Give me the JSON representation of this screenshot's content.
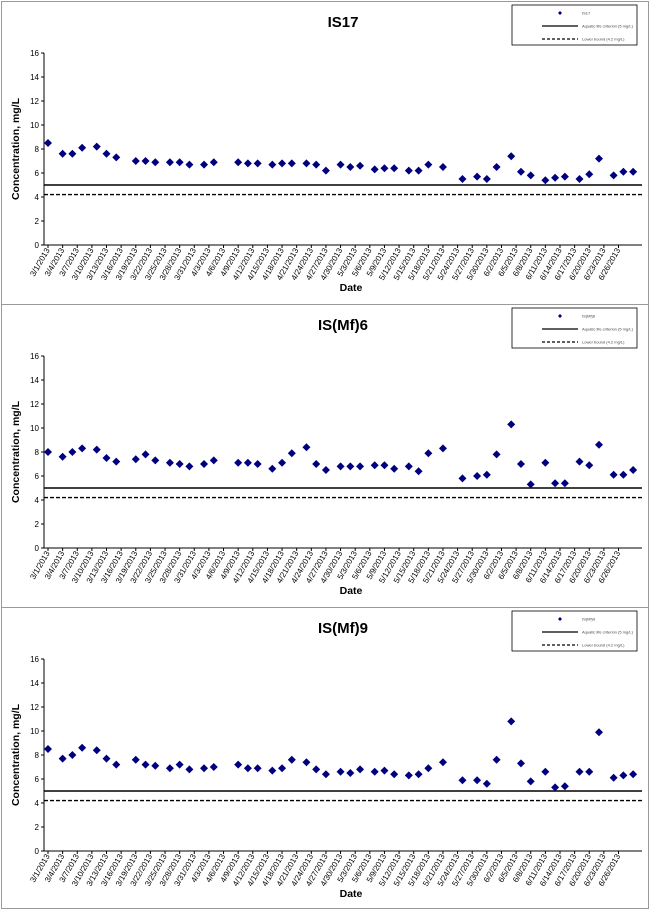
{
  "page": {
    "background": "#ffffff"
  },
  "style": {
    "marker_color": "#00007f",
    "line_color": "#000000"
  },
  "chart_data": [
    {
      "type": "scatter",
      "title": "IS17",
      "xlabel": "Date",
      "ylabel": "Concentration, mg/L",
      "ylim": [
        0,
        16
      ],
      "yticks": [
        0,
        2,
        4,
        6,
        8,
        10,
        12,
        14,
        16
      ],
      "xlim": [
        "2013-03-01",
        "2013-06-29"
      ],
      "xtick_labels": [
        "3/1/2013",
        "3/4/2013",
        "3/7/2013",
        "3/10/2013",
        "3/13/2013",
        "3/16/2013",
        "3/19/2013",
        "3/22/2013",
        "3/25/2013",
        "3/28/2013",
        "3/31/2013",
        "4/3/2013",
        "4/6/2013",
        "4/9/2013",
        "4/12/2013",
        "4/15/2013",
        "4/18/2013",
        "4/21/2013",
        "4/24/2013",
        "4/27/2013",
        "4/30/2013",
        "5/3/2013",
        "5/6/2013",
        "5/9/2013",
        "5/12/2013",
        "5/15/2013",
        "5/18/2013",
        "5/21/2013",
        "5/24/2013",
        "5/27/2013",
        "5/30/2013",
        "6/2/2013",
        "6/5/2013",
        "6/8/2013",
        "6/11/2013",
        "6/14/2013",
        "6/17/2013",
        "6/20/2013",
        "6/23/2013",
        "6/26/2013"
      ],
      "grid": false,
      "legend_position": "top-right",
      "legend_labels": [
        "IS17",
        "Aquatic life criterion (5 mg/L)",
        "Lower bound (4.2 mg/L)"
      ],
      "series": [
        {
          "name": "IS17",
          "style": "marker",
          "x": [
            "2013-03-01",
            "2013-03-04",
            "2013-03-06",
            "2013-03-08",
            "2013-03-11",
            "2013-03-13",
            "2013-03-15",
            "2013-03-19",
            "2013-03-21",
            "2013-03-23",
            "2013-03-26",
            "2013-03-28",
            "2013-03-30",
            "2013-04-02",
            "2013-04-04",
            "2013-04-09",
            "2013-04-11",
            "2013-04-13",
            "2013-04-16",
            "2013-04-18",
            "2013-04-20",
            "2013-04-23",
            "2013-04-25",
            "2013-04-27",
            "2013-04-30",
            "2013-05-02",
            "2013-05-04",
            "2013-05-07",
            "2013-05-09",
            "2013-05-11",
            "2013-05-14",
            "2013-05-16",
            "2013-05-18",
            "2013-05-21",
            "2013-05-25",
            "2013-05-28",
            "2013-05-30",
            "2013-06-01",
            "2013-06-04",
            "2013-06-06",
            "2013-06-08",
            "2013-06-11",
            "2013-06-13",
            "2013-06-15",
            "2013-06-18",
            "2013-06-20",
            "2013-06-22",
            "2013-06-25",
            "2013-06-27",
            "2013-06-29"
          ],
          "y": [
            8.5,
            7.6,
            7.6,
            8.1,
            8.2,
            7.6,
            7.3,
            7.0,
            7.0,
            6.9,
            6.9,
            6.9,
            6.7,
            6.7,
            6.9,
            6.9,
            6.8,
            6.8,
            6.7,
            6.8,
            6.8,
            6.8,
            6.7,
            6.2,
            6.7,
            6.5,
            6.6,
            6.3,
            6.4,
            6.4,
            6.2,
            6.2,
            6.7,
            6.5,
            5.5,
            5.7,
            5.5,
            6.5,
            7.4,
            6.1,
            5.8,
            5.4,
            5.6,
            5.7,
            5.5,
            5.9,
            7.2,
            5.8,
            6.1,
            6.1
          ]
        },
        {
          "name": "Aquatic life criterion (5 mg/L)",
          "style": "solid",
          "y": 5.0
        },
        {
          "name": "Lower bound (4.2 mg/L)",
          "style": "dashed",
          "y": 4.2
        }
      ]
    },
    {
      "type": "scatter",
      "title": "IS(Mf)6",
      "xlabel": "Date",
      "ylabel": "Concentration, mg/L",
      "ylim": [
        0,
        16
      ],
      "yticks": [
        0,
        2,
        4,
        6,
        8,
        10,
        12,
        14,
        16
      ],
      "xlim": [
        "2013-03-01",
        "2013-06-29"
      ],
      "xtick_labels": [
        "3/1/2013",
        "3/4/2013",
        "3/7/2013",
        "3/10/2013",
        "3/13/2013",
        "3/16/2013",
        "3/19/2013",
        "3/22/2013",
        "3/25/2013",
        "3/28/2013",
        "3/31/2013",
        "4/3/2013",
        "4/6/2013",
        "4/9/2013",
        "4/12/2013",
        "4/15/2013",
        "4/18/2013",
        "4/21/2013",
        "4/24/2013",
        "4/27/2013",
        "4/30/2013",
        "5/3/2013",
        "5/6/2013",
        "5/9/2013",
        "5/12/2013",
        "5/15/2013",
        "5/18/2013",
        "5/21/2013",
        "5/24/2013",
        "5/27/2013",
        "5/30/2013",
        "6/2/2013",
        "6/5/2013",
        "6/8/2013",
        "6/11/2013",
        "6/14/2013",
        "6/17/2013",
        "6/20/2013",
        "6/23/2013",
        "6/26/2013"
      ],
      "grid": false,
      "legend_position": "top-right",
      "legend_labels": [
        "IS(Mf)6",
        "Aquatic life criterion (5 mg/L)",
        "Lower bound (4.2 mg/L)"
      ],
      "series": [
        {
          "name": "IS(Mf)6",
          "style": "marker",
          "x": [
            "2013-03-01",
            "2013-03-04",
            "2013-03-06",
            "2013-03-08",
            "2013-03-11",
            "2013-03-13",
            "2013-03-15",
            "2013-03-19",
            "2013-03-21",
            "2013-03-23",
            "2013-03-26",
            "2013-03-28",
            "2013-03-30",
            "2013-04-02",
            "2013-04-04",
            "2013-04-09",
            "2013-04-11",
            "2013-04-13",
            "2013-04-16",
            "2013-04-18",
            "2013-04-20",
            "2013-04-23",
            "2013-04-25",
            "2013-04-27",
            "2013-04-30",
            "2013-05-02",
            "2013-05-04",
            "2013-05-07",
            "2013-05-09",
            "2013-05-11",
            "2013-05-14",
            "2013-05-16",
            "2013-05-18",
            "2013-05-21",
            "2013-05-25",
            "2013-05-28",
            "2013-05-30",
            "2013-06-01",
            "2013-06-04",
            "2013-06-06",
            "2013-06-08",
            "2013-06-11",
            "2013-06-13",
            "2013-06-15",
            "2013-06-18",
            "2013-06-20",
            "2013-06-22",
            "2013-06-25",
            "2013-06-27",
            "2013-06-29"
          ],
          "y": [
            8.0,
            7.6,
            8.0,
            8.3,
            8.2,
            7.5,
            7.2,
            7.4,
            7.8,
            7.3,
            7.1,
            7.0,
            6.8,
            7.0,
            7.3,
            7.1,
            7.1,
            7.0,
            6.6,
            7.1,
            7.9,
            8.4,
            7.0,
            6.5,
            6.8,
            6.8,
            6.8,
            6.9,
            6.9,
            6.6,
            6.8,
            6.4,
            7.9,
            8.3,
            5.8,
            6.0,
            6.1,
            7.8,
            10.3,
            7.0,
            5.3,
            7.1,
            5.4,
            5.4,
            7.2,
            6.9,
            8.6,
            6.1,
            6.1,
            6.5
          ]
        },
        {
          "name": "Aquatic life criterion (5 mg/L)",
          "style": "solid",
          "y": 5.0
        },
        {
          "name": "Lower bound (4.2 mg/L)",
          "style": "dashed",
          "y": 4.2
        }
      ]
    },
    {
      "type": "scatter",
      "title": "IS(Mf)9",
      "xlabel": "Date",
      "ylabel": "Concentration, mg/L",
      "ylim": [
        0,
        16
      ],
      "yticks": [
        0,
        2,
        4,
        6,
        8,
        10,
        12,
        14,
        16
      ],
      "xlim": [
        "2013-03-01",
        "2013-06-29"
      ],
      "xtick_labels": [
        "3/1/2013",
        "3/4/2013",
        "3/7/2013",
        "3/10/2013",
        "3/13/2013",
        "3/16/2013",
        "3/19/2013",
        "3/22/2013",
        "3/25/2013",
        "3/28/2013",
        "3/31/2013",
        "4/3/2013",
        "4/6/2013",
        "4/9/2013",
        "4/12/2013",
        "4/15/2013",
        "4/18/2013",
        "4/21/2013",
        "4/24/2013",
        "4/27/2013",
        "4/30/2013",
        "5/3/2013",
        "5/6/2013",
        "5/9/2013",
        "5/12/2013",
        "5/15/2013",
        "5/18/2013",
        "5/21/2013",
        "5/24/2013",
        "5/27/2013",
        "5/30/2013",
        "6/2/2013",
        "6/5/2013",
        "6/8/2013",
        "6/11/2013",
        "6/14/2013",
        "6/17/2013",
        "6/20/2013",
        "6/23/2013",
        "6/26/2013"
      ],
      "grid": false,
      "legend_position": "top-right",
      "legend_labels": [
        "IS(Mf)9",
        "Aquatic life criterion (5 mg/L)",
        "Lower bound (4.2 mg/L)"
      ],
      "series": [
        {
          "name": "IS(Mf)9",
          "style": "marker",
          "x": [
            "2013-03-01",
            "2013-03-04",
            "2013-03-06",
            "2013-03-08",
            "2013-03-11",
            "2013-03-13",
            "2013-03-15",
            "2013-03-19",
            "2013-03-21",
            "2013-03-23",
            "2013-03-26",
            "2013-03-28",
            "2013-03-30",
            "2013-04-02",
            "2013-04-04",
            "2013-04-09",
            "2013-04-11",
            "2013-04-13",
            "2013-04-16",
            "2013-04-18",
            "2013-04-20",
            "2013-04-23",
            "2013-04-25",
            "2013-04-27",
            "2013-04-30",
            "2013-05-02",
            "2013-05-04",
            "2013-05-07",
            "2013-05-09",
            "2013-05-11",
            "2013-05-14",
            "2013-05-16",
            "2013-05-18",
            "2013-05-21",
            "2013-05-25",
            "2013-05-28",
            "2013-05-30",
            "2013-06-01",
            "2013-06-04",
            "2013-06-06",
            "2013-06-08",
            "2013-06-11",
            "2013-06-13",
            "2013-06-15",
            "2013-06-18",
            "2013-06-20",
            "2013-06-22",
            "2013-06-25",
            "2013-06-27",
            "2013-06-29"
          ],
          "y": [
            8.5,
            7.7,
            8.0,
            8.6,
            8.4,
            7.7,
            7.2,
            7.6,
            7.2,
            7.1,
            6.9,
            7.2,
            6.8,
            6.9,
            7.0,
            7.2,
            6.9,
            6.9,
            6.7,
            6.9,
            7.6,
            7.4,
            6.8,
            6.4,
            6.6,
            6.5,
            6.8,
            6.6,
            6.7,
            6.4,
            6.3,
            6.4,
            6.9,
            7.4,
            5.9,
            5.9,
            5.6,
            7.6,
            10.8,
            7.3,
            5.8,
            6.6,
            5.3,
            5.4,
            6.6,
            6.6,
            9.9,
            6.1,
            6.3,
            6.4
          ]
        },
        {
          "name": "Aquatic life criterion (5 mg/L)",
          "style": "solid",
          "y": 5.0
        },
        {
          "name": "Lower bound (4.2 mg/L)",
          "style": "dashed",
          "y": 4.2
        }
      ]
    }
  ]
}
